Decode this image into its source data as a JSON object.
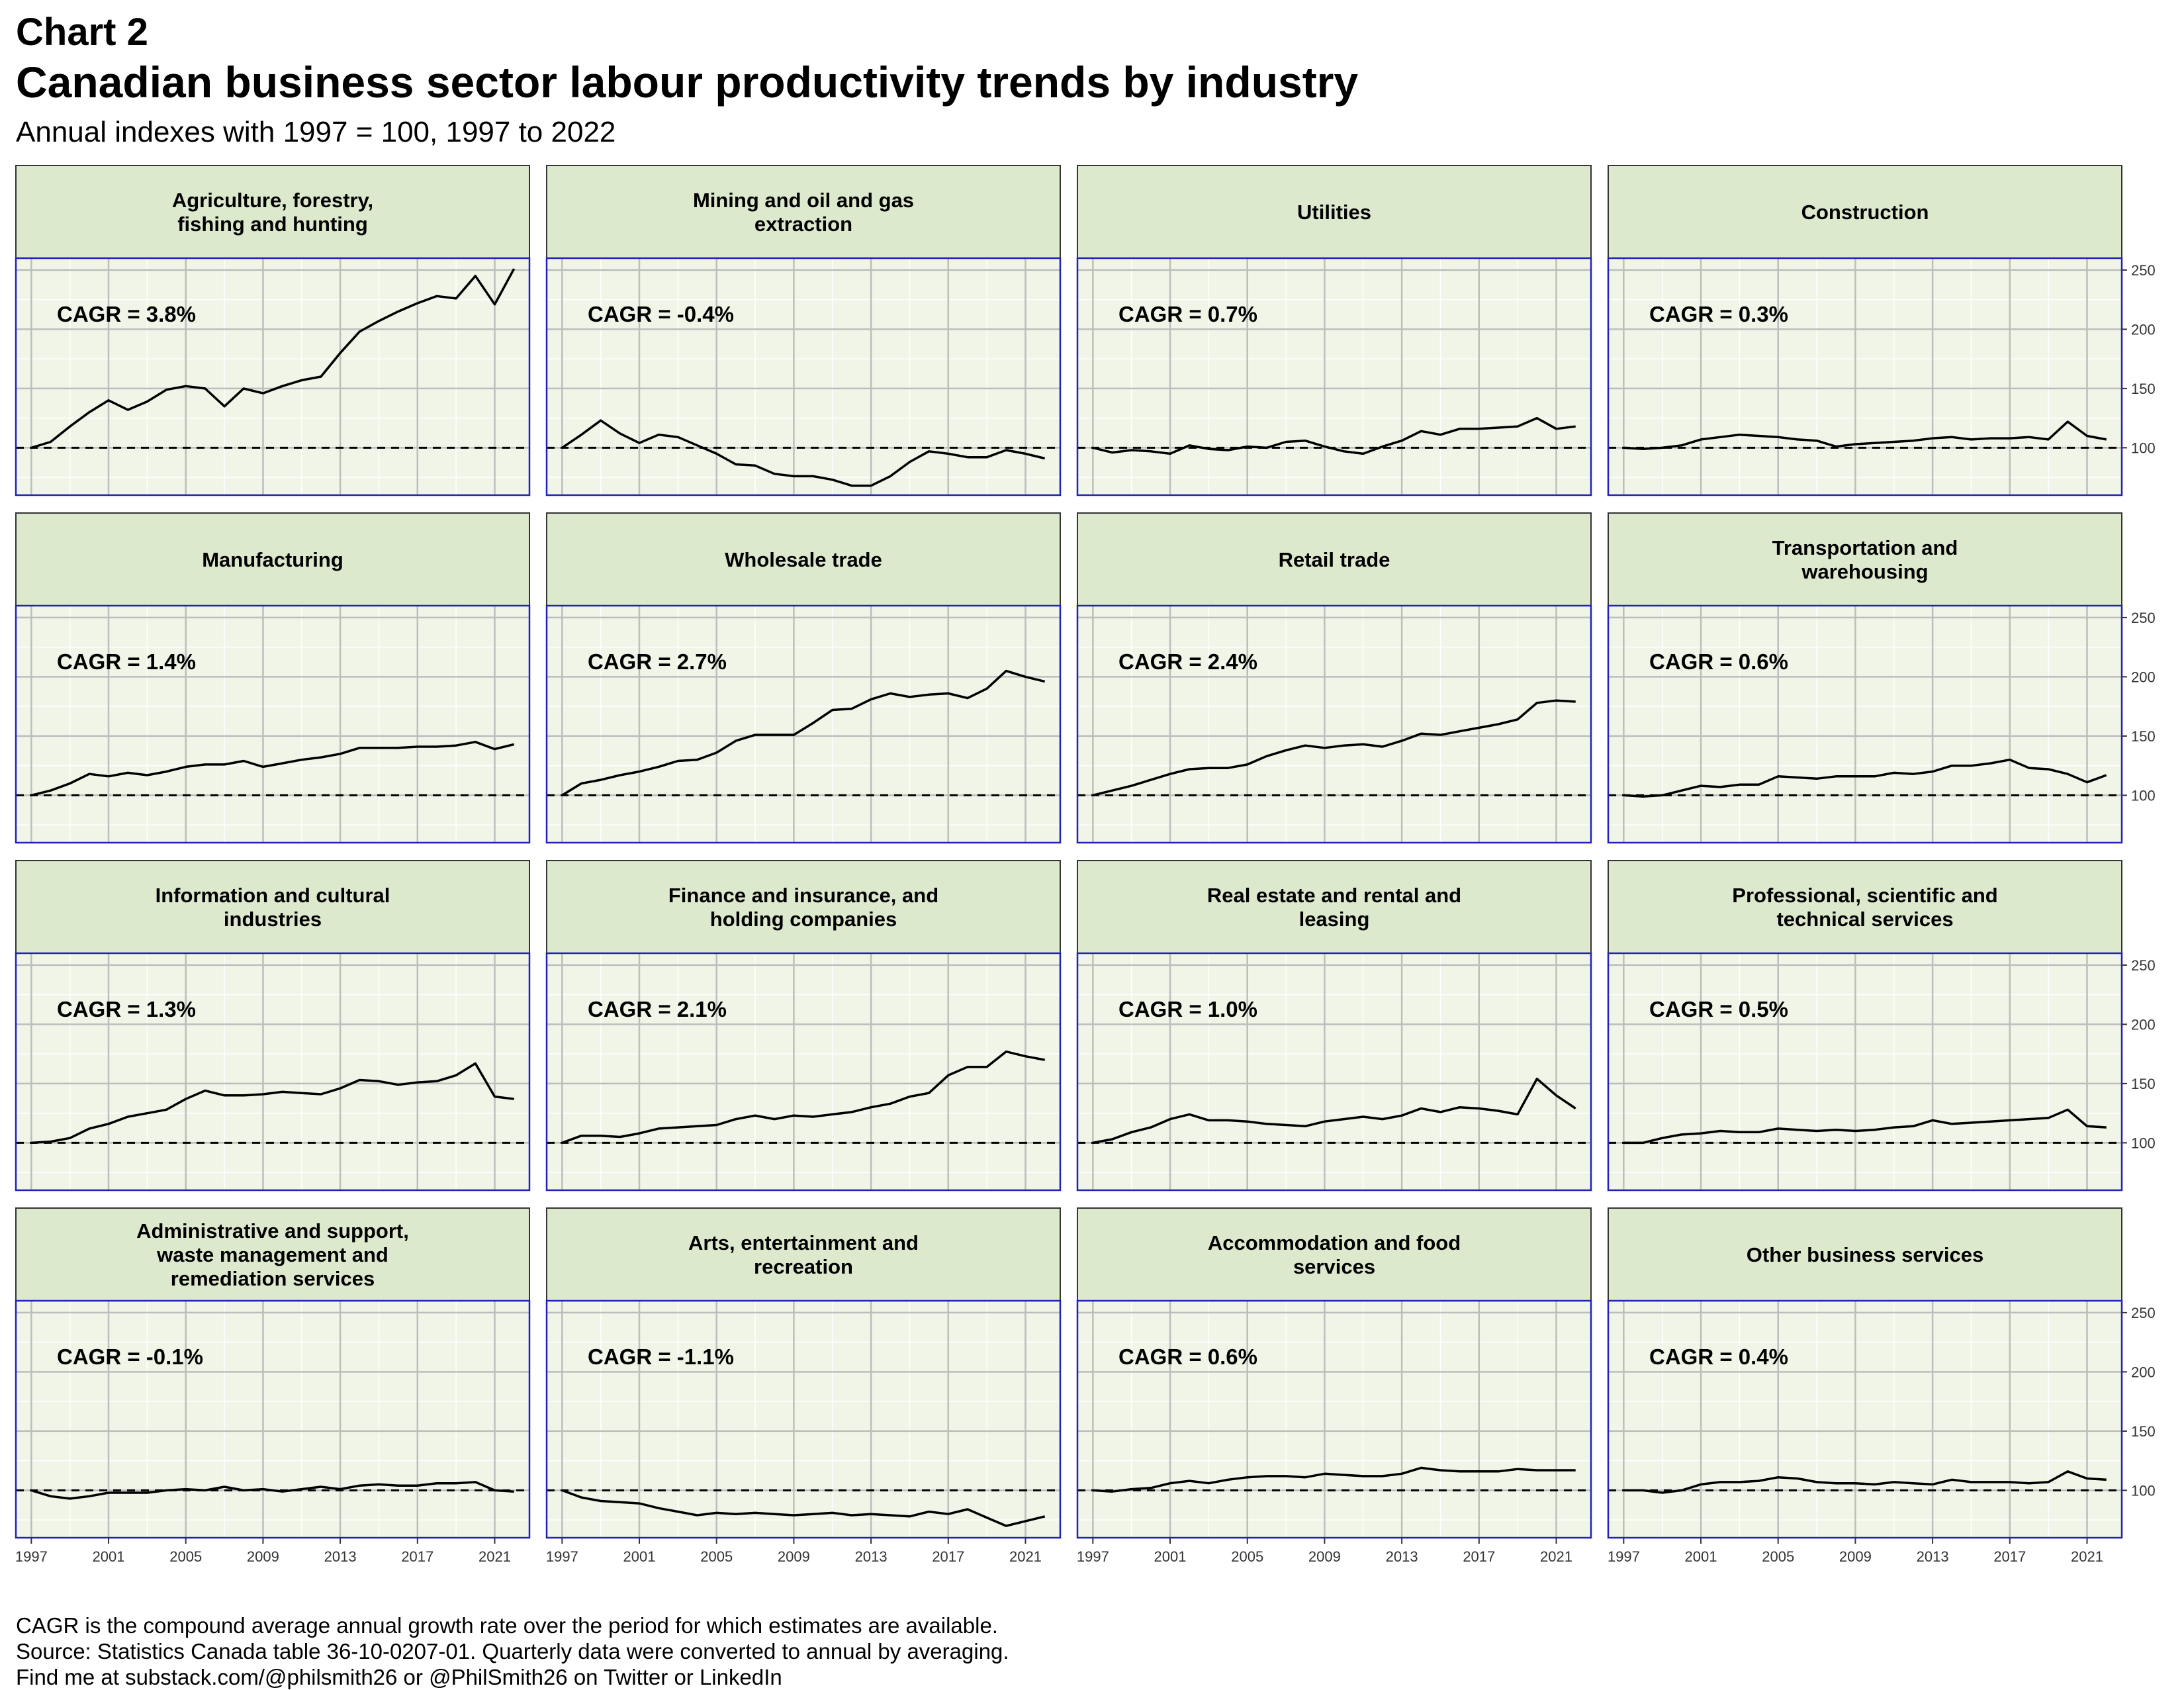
{
  "title_line1": "Chart 2",
  "title_line2": "Canadian business sector labour productivity trends by industry",
  "subtitle": "Annual indexes with 1997 = 100, 1997 to 2022",
  "notes": [
    "CAGR is the compound average annual growth rate over the period for which estimates are available.",
    "Source: Statistics Canada table 36-10-0207-01. Quarterly data were converted to annual by averaging.",
    "Find me at substack.com/@philsmith26 or @PhilSmith26 on Twitter or LinkedIn"
  ],
  "chart_data": {
    "type": "line",
    "layout": "small-multiples",
    "ylim": [
      60,
      260
    ],
    "y_ticks": [
      100,
      150,
      200,
      250
    ],
    "x_ticks": [
      1997,
      2001,
      2005,
      2009,
      2013,
      2017,
      2021
    ],
    "reference_line": 100,
    "x": [
      1997,
      1998,
      1999,
      2000,
      2001,
      2002,
      2003,
      2004,
      2005,
      2006,
      2007,
      2008,
      2009,
      2010,
      2011,
      2012,
      2013,
      2014,
      2015,
      2016,
      2017,
      2018,
      2019,
      2020,
      2021,
      2022
    ],
    "colors": {
      "panel_bg": "#f0f5e8",
      "strip_bg": "#dde9cd",
      "panel_border": "#2222bb",
      "grid": "#bdbdbd",
      "line": "#000000"
    },
    "panels": [
      {
        "title": [
          "Agriculture, forestry,",
          "fishing and hunting"
        ],
        "cagr": "CAGR = 3.8%",
        "values": [
          100,
          105,
          118,
          130,
          140,
          132,
          139,
          149,
          152,
          150,
          135,
          150,
          146,
          152,
          157,
          160,
          180,
          198,
          207,
          215,
          222,
          228,
          226,
          245,
          221,
          251
        ]
      },
      {
        "title": [
          "Mining and oil and gas",
          "extraction"
        ],
        "cagr": "CAGR = -0.4%",
        "values": [
          100,
          111,
          123,
          112,
          104,
          111,
          109,
          102,
          95,
          86,
          85,
          78,
          76,
          76,
          73,
          68,
          68,
          76,
          88,
          97,
          95,
          92,
          92,
          98,
          95,
          91
        ]
      },
      {
        "title": [
          "Utilities"
        ],
        "cagr": "CAGR = 0.7%",
        "values": [
          100,
          96,
          98,
          97,
          95,
          102,
          99,
          98,
          101,
          100,
          105,
          106,
          101,
          97,
          95,
          101,
          106,
          114,
          111,
          116,
          116,
          117,
          118,
          125,
          116,
          118
        ]
      },
      {
        "title": [
          "Construction"
        ],
        "cagr": "CAGR = 0.3%",
        "values": [
          100,
          99,
          100,
          102,
          107,
          109,
          111,
          110,
          109,
          107,
          106,
          101,
          103,
          104,
          105,
          106,
          108,
          109,
          107,
          108,
          108,
          109,
          107,
          122,
          110,
          107
        ]
      },
      {
        "title": [
          "Manufacturing"
        ],
        "cagr": "CAGR = 1.4%",
        "values": [
          100,
          104,
          110,
          118,
          116,
          119,
          117,
          120,
          124,
          126,
          126,
          129,
          124,
          127,
          130,
          132,
          135,
          140,
          140,
          140,
          141,
          141,
          142,
          145,
          139,
          143
        ]
      },
      {
        "title": [
          "Wholesale trade"
        ],
        "cagr": "CAGR = 2.7%",
        "values": [
          100,
          110,
          113,
          117,
          120,
          124,
          129,
          130,
          136,
          146,
          151,
          151,
          151,
          161,
          172,
          173,
          181,
          186,
          183,
          185,
          186,
          182,
          190,
          205,
          200,
          196
        ]
      },
      {
        "title": [
          "Retail trade"
        ],
        "cagr": "CAGR = 2.4%",
        "values": [
          100,
          104,
          108,
          113,
          118,
          122,
          123,
          123,
          126,
          133,
          138,
          142,
          140,
          142,
          143,
          141,
          146,
          152,
          151,
          154,
          157,
          160,
          164,
          178,
          180,
          179
        ]
      },
      {
        "title": [
          "Transportation and",
          "warehousing"
        ],
        "cagr": "CAGR = 0.6%",
        "values": [
          100,
          99,
          100,
          104,
          108,
          107,
          109,
          109,
          116,
          115,
          114,
          116,
          116,
          116,
          119,
          118,
          120,
          125,
          125,
          127,
          130,
          123,
          122,
          118,
          111,
          117
        ]
      },
      {
        "title": [
          "Information and cultural",
          "industries"
        ],
        "cagr": "CAGR = 1.3%",
        "values": [
          100,
          101,
          104,
          112,
          116,
          122,
          125,
          128,
          137,
          144,
          140,
          140,
          141,
          143,
          142,
          141,
          146,
          153,
          152,
          149,
          151,
          152,
          157,
          167,
          139,
          137
        ]
      },
      {
        "title": [
          "Finance and insurance, and",
          "holding companies"
        ],
        "cagr": "CAGR = 2.1%",
        "values": [
          100,
          106,
          106,
          105,
          108,
          112,
          113,
          114,
          115,
          120,
          123,
          120,
          123,
          122,
          124,
          126,
          130,
          133,
          139,
          142,
          157,
          164,
          164,
          177,
          173,
          170
        ]
      },
      {
        "title": [
          "Real estate and rental and",
          "leasing"
        ],
        "cagr": "CAGR = 1.0%",
        "values": [
          100,
          103,
          109,
          113,
          120,
          124,
          119,
          119,
          118,
          116,
          115,
          114,
          118,
          120,
          122,
          120,
          123,
          129,
          126,
          130,
          129,
          127,
          124,
          154,
          140,
          129
        ]
      },
      {
        "title": [
          "Professional, scientific and",
          "technical services"
        ],
        "cagr": "CAGR = 0.5%",
        "values": [
          100,
          100,
          104,
          107,
          108,
          110,
          109,
          109,
          112,
          111,
          110,
          111,
          110,
          111,
          113,
          114,
          119,
          116,
          117,
          118,
          119,
          120,
          121,
          128,
          114,
          113
        ]
      },
      {
        "title": [
          "Administrative and support,",
          "waste management and",
          "remediation services"
        ],
        "cagr": "CAGR = -0.1%",
        "values": [
          100,
          95,
          93,
          95,
          98,
          98,
          98,
          100,
          101,
          100,
          103,
          100,
          101,
          99,
          101,
          103,
          101,
          104,
          105,
          104,
          104,
          106,
          106,
          107,
          100,
          99
        ]
      },
      {
        "title": [
          "Arts, entertainment and",
          "recreation"
        ],
        "cagr": "CAGR = -1.1%",
        "values": [
          100,
          94,
          91,
          90,
          89,
          85,
          82,
          79,
          81,
          80,
          81,
          80,
          79,
          80,
          81,
          79,
          80,
          79,
          78,
          82,
          80,
          84,
          77,
          70,
          74,
          78
        ]
      },
      {
        "title": [
          "Accommodation and food",
          "services"
        ],
        "cagr": "CAGR = 0.6%",
        "values": [
          100,
          99,
          101,
          102,
          106,
          108,
          106,
          109,
          111,
          112,
          112,
          111,
          114,
          113,
          112,
          112,
          114,
          119,
          117,
          116,
          116,
          116,
          118,
          117,
          117,
          117
        ]
      },
      {
        "title": [
          "Other business services"
        ],
        "cagr": "CAGR = 0.4%",
        "values": [
          100,
          100,
          98,
          100,
          105,
          107,
          107,
          108,
          111,
          110,
          107,
          106,
          106,
          105,
          107,
          106,
          105,
          109,
          107,
          107,
          107,
          106,
          107,
          116,
          110,
          109
        ]
      }
    ]
  }
}
